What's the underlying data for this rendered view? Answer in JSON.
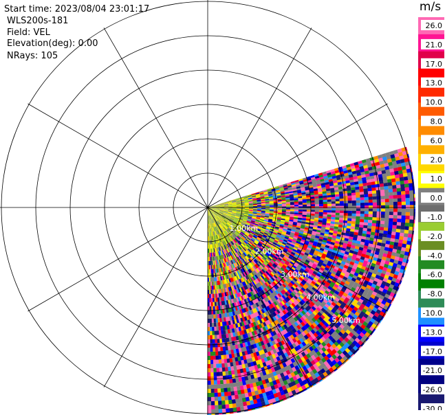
{
  "header": {
    "start_time": "Start time: 2023/08/04 23:01:17",
    "instrument": "WLS200s-181",
    "field": "Field: VEL",
    "elevation": "Elevation(deg): 0.00",
    "nrays": "NRays: 105"
  },
  "range_labels": [
    "1.00km",
    "2.00km",
    "3.00km",
    "4.00km",
    "5.00km"
  ],
  "colorbar": {
    "unit": "m/s",
    "ticks": [
      "26.0",
      "21.0",
      "17.0",
      "13.0",
      "10.0",
      "8.0",
      "6.0",
      "2.0",
      "1.0",
      "0.0",
      "-1.0",
      "-2.0",
      "-4.0",
      "-6.0",
      "-8.0",
      "-10.0",
      "-13.0",
      "-17.0",
      "-21.0",
      "-26.0",
      "-30.0"
    ],
    "bands": [
      "#ff69b4",
      "#ff1493",
      "#e0004a",
      "#ff0000",
      "#ff2a00",
      "#ff5a00",
      "#ff8c00",
      "#ffb000",
      "#ffd700",
      "#ffff00",
      "#808080",
      "#6e6e6e",
      "#9acd32",
      "#6b8e23",
      "#228b22",
      "#008000",
      "#2e8b57",
      "#1e90ff",
      "#0000ff",
      "#0000cd",
      "#00008b",
      "#000080",
      "#191970"
    ]
  },
  "colors": {
    "gridline": "#000000",
    "label_text": "#ffffff"
  }
}
